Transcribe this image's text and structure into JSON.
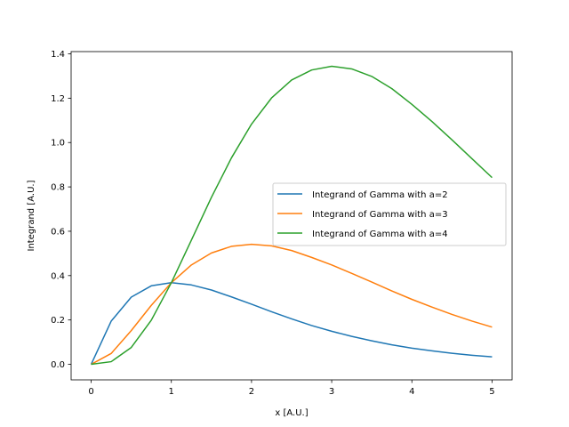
{
  "chart_data": {
    "type": "line",
    "title": "",
    "xlabel": "x [A.U.]",
    "ylabel": "Integrand [A.U.]",
    "xlim": [
      -0.25,
      5.25
    ],
    "ylim": [
      -0.07,
      1.41
    ],
    "xticks": [
      0,
      1,
      2,
      3,
      4,
      5
    ],
    "xtick_labels": [
      "0",
      "1",
      "2",
      "3",
      "4",
      "5"
    ],
    "yticks": [
      0.0,
      0.2,
      0.4,
      0.6,
      0.8,
      1.0,
      1.2,
      1.4
    ],
    "ytick_labels": [
      "0.0",
      "0.2",
      "0.4",
      "0.6",
      "0.8",
      "1.0",
      "1.2",
      "1.4"
    ],
    "grid": false,
    "legend_position": "center-right",
    "x": [
      0,
      0.25,
      0.5,
      0.75,
      1,
      1.25,
      1.5,
      1.75,
      2,
      2.25,
      2.5,
      2.75,
      3,
      3.25,
      3.5,
      3.75,
      4,
      4.25,
      4.5,
      4.75,
      5
    ],
    "series": [
      {
        "name": "Integrand of Gamma with a=2",
        "color": "#1f77b4",
        "values": [
          0,
          0.195,
          0.303,
          0.354,
          0.368,
          0.358,
          0.335,
          0.304,
          0.271,
          0.237,
          0.205,
          0.175,
          0.149,
          0.126,
          0.106,
          0.088,
          0.073,
          0.061,
          0.05,
          0.041,
          0.034
        ]
      },
      {
        "name": "Integrand of Gamma with a=3",
        "color": "#ff7f0e",
        "values": [
          0,
          0.049,
          0.152,
          0.266,
          0.368,
          0.448,
          0.502,
          0.532,
          0.541,
          0.534,
          0.513,
          0.482,
          0.448,
          0.41,
          0.371,
          0.331,
          0.293,
          0.258,
          0.225,
          0.195,
          0.168
        ]
      },
      {
        "name": "Integrand of Gamma with a=4",
        "color": "#2ca02c",
        "values": [
          0,
          0.012,
          0.076,
          0.199,
          0.368,
          0.56,
          0.753,
          0.931,
          1.083,
          1.201,
          1.282,
          1.327,
          1.344,
          1.332,
          1.298,
          1.243,
          1.172,
          1.095,
          1.012,
          0.927,
          0.842
        ]
      }
    ]
  }
}
